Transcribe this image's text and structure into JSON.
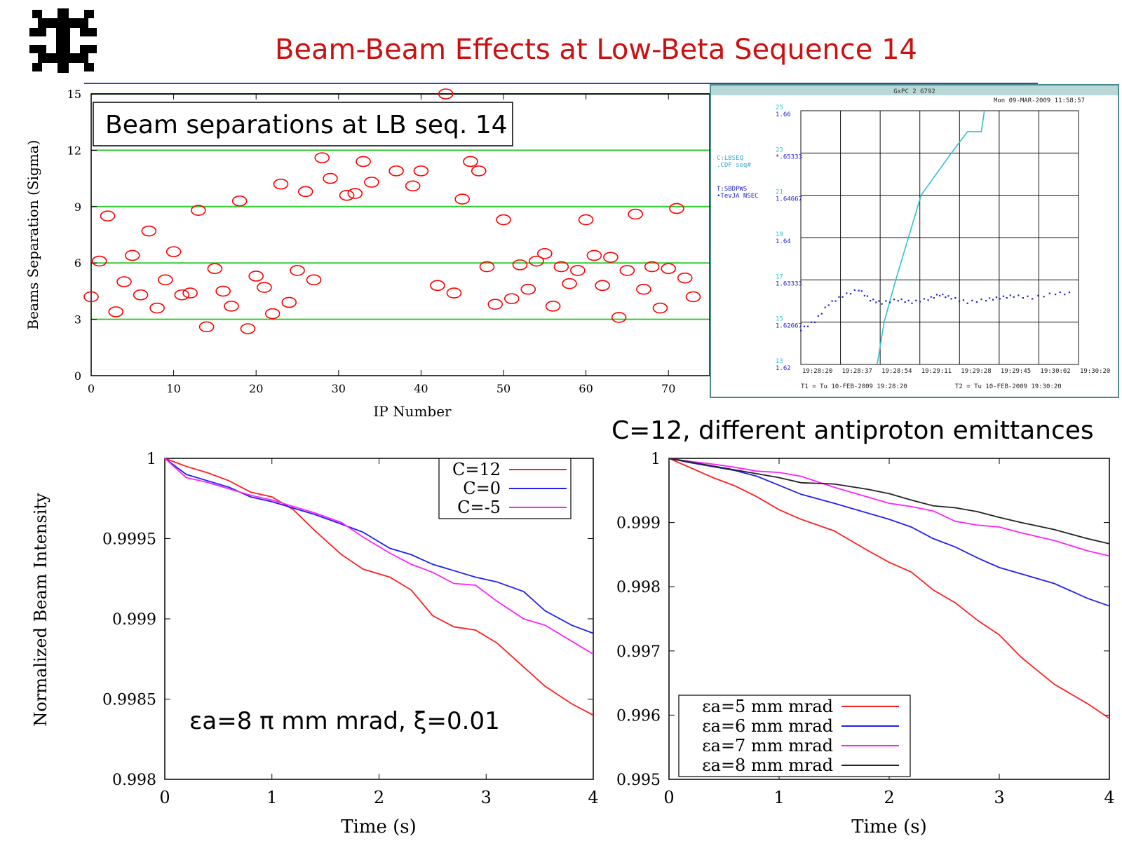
{
  "slide": {
    "title": "Beam-Beam Effects at Low-Beta Sequence 14",
    "subtitle_right": "C=12, different antiproton emittances"
  },
  "colors": {
    "title": "#cc1111",
    "rule": "#3a3ad8",
    "grid_green": "#33cc33",
    "marker_red": "#ff0000",
    "scope_cyan": "#33c0d0",
    "scope_blue": "#2020cc",
    "scope_frame": "#4a8a8a"
  },
  "chart_data": [
    {
      "id": "separations",
      "type": "scatter",
      "annotation": "Beam separations at LB seq. 14",
      "xlabel": "IP Number",
      "ylabel": "Beams Separation (Sigma)",
      "xlim": [
        0,
        75
      ],
      "ylim": [
        0,
        15
      ],
      "xticks": [
        0,
        10,
        20,
        30,
        40,
        50,
        60,
        70
      ],
      "yticks": [
        0,
        3,
        6,
        9,
        12,
        15
      ],
      "grid_lines_y": [
        3,
        6,
        9,
        12
      ],
      "marker": "open-circle",
      "points": [
        [
          0,
          4.2
        ],
        [
          1,
          6.1
        ],
        [
          2,
          8.5
        ],
        [
          3,
          3.4
        ],
        [
          4,
          5.0
        ],
        [
          5,
          6.4
        ],
        [
          6,
          4.3
        ],
        [
          7,
          7.7
        ],
        [
          8,
          3.6
        ],
        [
          9,
          5.1
        ],
        [
          10,
          6.6
        ],
        [
          11,
          4.3
        ],
        [
          12,
          4.4
        ],
        [
          13,
          8.8
        ],
        [
          14,
          2.6
        ],
        [
          15,
          5.7
        ],
        [
          16,
          4.5
        ],
        [
          17,
          3.7
        ],
        [
          18,
          9.3
        ],
        [
          19,
          2.5
        ],
        [
          20,
          5.3
        ],
        [
          21,
          4.7
        ],
        [
          22,
          3.3
        ],
        [
          23,
          10.2
        ],
        [
          24,
          3.9
        ],
        [
          25,
          5.6
        ],
        [
          26,
          9.8
        ],
        [
          27,
          5.1
        ],
        [
          28,
          11.6
        ],
        [
          29,
          10.5
        ],
        [
          31,
          9.6
        ],
        [
          32,
          9.7
        ],
        [
          33,
          11.4
        ],
        [
          34,
          10.3
        ],
        [
          37,
          10.9
        ],
        [
          39,
          10.1
        ],
        [
          40,
          10.9
        ],
        [
          42,
          4.8
        ],
        [
          43,
          15.0
        ],
        [
          44,
          4.4
        ],
        [
          45,
          9.4
        ],
        [
          46,
          11.4
        ],
        [
          47,
          10.9
        ],
        [
          48,
          5.8
        ],
        [
          49,
          3.8
        ],
        [
          50,
          8.3
        ],
        [
          51,
          4.1
        ],
        [
          52,
          5.9
        ],
        [
          53,
          4.6
        ],
        [
          54,
          6.1
        ],
        [
          55,
          6.5
        ],
        [
          56,
          3.7
        ],
        [
          57,
          5.8
        ],
        [
          58,
          4.9
        ],
        [
          59,
          5.6
        ],
        [
          60,
          8.3
        ],
        [
          61,
          6.4
        ],
        [
          62,
          4.8
        ],
        [
          63,
          6.3
        ],
        [
          64,
          3.1
        ],
        [
          65,
          5.6
        ],
        [
          66,
          8.6
        ],
        [
          67,
          4.6
        ],
        [
          68,
          5.8
        ],
        [
          69,
          3.6
        ],
        [
          70,
          5.7
        ],
        [
          71,
          8.9
        ],
        [
          72,
          5.2
        ],
        [
          73,
          4.2
        ]
      ]
    },
    {
      "id": "scope",
      "type": "line",
      "window_title": "GxPC 2 6792",
      "timestamp": "Mon 09-MAR-2009 11:58:57",
      "legend_1a": "C:LBSEQ",
      "legend_1b": ".CDF     seq#",
      "legend_2a": "T:SBDPWS",
      "legend_2b": "•TevJA  NSEC",
      "left_axis": [
        [
          "25",
          "1.66"
        ],
        [
          "23",
          "*.65333"
        ],
        [
          "21",
          "1.64667"
        ],
        [
          "19",
          "1.64"
        ],
        [
          "17",
          "1.63333"
        ],
        [
          "15",
          "1.62667"
        ],
        [
          "13",
          "1.62"
        ]
      ],
      "x_ticks": [
        "19:28:20",
        "19:28:37",
        "19:28:54",
        "19:29:11",
        "19:29:28",
        "19:29:45",
        "19:30:02",
        "19:30:20"
      ],
      "t1_label": "T1 = Tu 10-FEB-2009 19:28:20",
      "t2_label": "T2 = Tu 10-FEB-2009 19:30:20",
      "xlim": [
        0,
        120
      ],
      "ylim": [
        1.62,
        1.66
      ],
      "series": [
        {
          "points": [
            [
              33,
              1.62
            ],
            [
              36,
              1.6267
            ],
            [
              41,
              1.6333
            ],
            [
              52,
              1.6467
            ],
            [
              65,
              1.6533
            ],
            [
              72,
              1.6567
            ],
            [
              78,
              1.6567
            ],
            [
              82,
              1.6667
            ]
          ]
        },
        {
          "points": [
            [
              0,
              1.6255
            ],
            [
              6,
              1.6268
            ],
            [
              12,
              1.6295
            ],
            [
              18,
              1.6308
            ],
            [
              25,
              1.6318
            ],
            [
              30,
              1.6302
            ],
            [
              35,
              1.6297
            ],
            [
              42,
              1.6302
            ],
            [
              48,
              1.6298
            ],
            [
              55,
              1.6303
            ],
            [
              60,
              1.631
            ],
            [
              65,
              1.6305
            ],
            [
              72,
              1.6298
            ],
            [
              80,
              1.6302
            ],
            [
              86,
              1.6305
            ],
            [
              92,
              1.6308
            ],
            [
              100,
              1.6305
            ],
            [
              110,
              1.6312
            ],
            [
              118,
              1.6312
            ]
          ]
        }
      ]
    },
    {
      "id": "c-scan",
      "type": "line",
      "annotation": "εa=8 π mm mrad, ξ=0.01",
      "xlabel": "Time (s)",
      "ylabel": "Normalized Beam Intensity",
      "xlim": [
        0,
        4
      ],
      "ylim": [
        0.998,
        1
      ],
      "xticks": [
        "0",
        "1",
        "2",
        "3",
        "4"
      ],
      "yticks": [
        "1",
        "0.9995",
        "0.999",
        "0.9985",
        "0.998"
      ],
      "series": [
        {
          "name": "C=12",
          "color": "#ff2020",
          "x": [
            0,
            0.2,
            0.4,
            0.6,
            0.8,
            1.0,
            1.2,
            1.4,
            1.65,
            1.85,
            2.1,
            2.3,
            2.5,
            2.7,
            2.9,
            3.1,
            3.3,
            3.55,
            3.8,
            4.0
          ],
          "y": [
            1.0,
            0.99995,
            0.99991,
            0.99986,
            0.99979,
            0.99976,
            0.99968,
            0.99955,
            0.9994,
            0.99931,
            0.99926,
            0.99918,
            0.99902,
            0.99895,
            0.99893,
            0.99885,
            0.99873,
            0.99858,
            0.99847,
            0.9984
          ]
        },
        {
          "name": "C=0",
          "color": "#2020ee",
          "x": [
            0,
            0.2,
            0.4,
            0.6,
            0.8,
            1.0,
            1.2,
            1.4,
            1.65,
            1.85,
            2.1,
            2.3,
            2.5,
            2.7,
            2.9,
            3.1,
            3.35,
            3.55,
            3.8,
            4.0
          ],
          "y": [
            1.0,
            0.9999,
            0.99986,
            0.99982,
            0.99976,
            0.99973,
            0.99969,
            0.99965,
            0.99959,
            0.99954,
            0.99944,
            0.9994,
            0.99934,
            0.9993,
            0.99926,
            0.99923,
            0.99917,
            0.99905,
            0.99896,
            0.99891
          ]
        },
        {
          "name": "C=-5",
          "color": "#ff20ff",
          "x": [
            0,
            0.2,
            0.4,
            0.6,
            0.8,
            1.0,
            1.2,
            1.4,
            1.65,
            1.85,
            2.1,
            2.3,
            2.5,
            2.7,
            2.9,
            3.1,
            3.35,
            3.55,
            3.8,
            4.0
          ],
          "y": [
            1.0,
            0.99988,
            0.99985,
            0.99981,
            0.99977,
            0.99974,
            0.9997,
            0.99966,
            0.9996,
            0.99951,
            0.99941,
            0.99934,
            0.99929,
            0.99922,
            0.99921,
            0.99911,
            0.999,
            0.99896,
            0.99886,
            0.99878
          ]
        }
      ]
    },
    {
      "id": "emittance-scan",
      "type": "line",
      "xlabel": "Time (s)",
      "xlim": [
        0,
        4
      ],
      "ylim": [
        0.995,
        1
      ],
      "xticks": [
        "0",
        "1",
        "2",
        "3",
        "4"
      ],
      "yticks": [
        "1",
        "0.999",
        "0.998",
        "0.997",
        "0.996",
        "0.995"
      ],
      "series": [
        {
          "name": "εa=5 mm mrad",
          "color": "#ff2020",
          "x": [
            0,
            0.2,
            0.4,
            0.6,
            0.8,
            1.0,
            1.2,
            1.5,
            1.8,
            2.0,
            2.2,
            2.4,
            2.6,
            2.8,
            3.0,
            3.2,
            3.5,
            3.8,
            4.0
          ],
          "y": [
            1.0,
            0.99985,
            0.9997,
            0.99957,
            0.9994,
            0.9992,
            0.99905,
            0.99887,
            0.99857,
            0.99838,
            0.99823,
            0.99795,
            0.99775,
            0.99748,
            0.99725,
            0.9969,
            0.99648,
            0.99618,
            0.99595
          ]
        },
        {
          "name": "εa=6 mm mrad",
          "color": "#2020ee",
          "x": [
            0,
            0.2,
            0.4,
            0.6,
            0.8,
            1.0,
            1.2,
            1.5,
            1.8,
            2.0,
            2.2,
            2.4,
            2.6,
            2.8,
            3.0,
            3.2,
            3.5,
            3.8,
            4.0
          ],
          "y": [
            1.0,
            0.99993,
            0.99987,
            0.99981,
            0.99972,
            0.99958,
            0.99944,
            0.9993,
            0.99915,
            0.99905,
            0.99893,
            0.99875,
            0.99862,
            0.99845,
            0.9983,
            0.9982,
            0.99805,
            0.99782,
            0.9977
          ]
        },
        {
          "name": "εa=7 mm mrad",
          "color": "#ff20ff",
          "x": [
            0,
            0.2,
            0.4,
            0.6,
            0.8,
            1.0,
            1.2,
            1.5,
            1.8,
            2.0,
            2.2,
            2.4,
            2.6,
            2.8,
            3.0,
            3.2,
            3.5,
            3.8,
            4.0
          ],
          "y": [
            1.0,
            0.99995,
            0.99991,
            0.99986,
            0.9998,
            0.99978,
            0.99972,
            0.99955,
            0.9994,
            0.9993,
            0.99925,
            0.99918,
            0.99902,
            0.99896,
            0.99893,
            0.99884,
            0.99872,
            0.99856,
            0.99848
          ]
        },
        {
          "name": "εa=8 mm mrad",
          "color": "#222222",
          "x": [
            0,
            0.2,
            0.4,
            0.6,
            0.8,
            1.0,
            1.2,
            1.5,
            1.8,
            2.0,
            2.2,
            2.4,
            2.6,
            2.8,
            3.0,
            3.2,
            3.5,
            3.8,
            4.0
          ],
          "y": [
            1.0,
            0.99994,
            0.99988,
            0.99982,
            0.99976,
            0.9997,
            0.99962,
            0.9996,
            0.99952,
            0.99945,
            0.99935,
            0.99926,
            0.99923,
            0.99917,
            0.99908,
            0.999,
            0.99889,
            0.99875,
            0.99867
          ]
        }
      ]
    }
  ]
}
